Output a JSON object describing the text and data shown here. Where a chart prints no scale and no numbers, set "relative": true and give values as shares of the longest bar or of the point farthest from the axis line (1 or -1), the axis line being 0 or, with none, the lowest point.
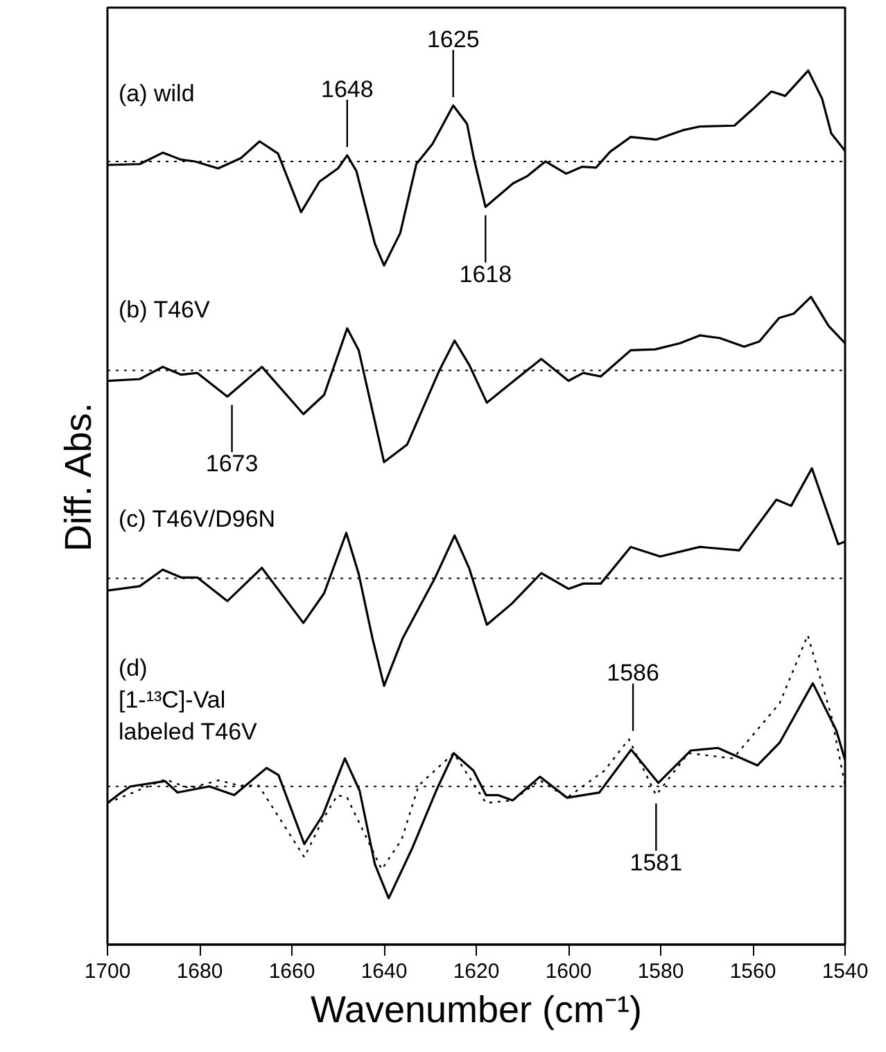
{
  "chart_data": {
    "type": "line",
    "relative": true,
    "xlabel": "Wavenumber (cm⁻¹)",
    "ylabel": "Diff. Abs.",
    "xlim": [
      1700,
      1540
    ],
    "xticks": [
      1700,
      1680,
      1660,
      1640,
      1620,
      1600,
      1580,
      1560,
      1540
    ],
    "grid": false,
    "marker": "none",
    "series": [
      {
        "name": "(a) wild",
        "color": "#000000",
        "line_style": "solid",
        "x": [
          1700,
          1693,
          1688,
          1684,
          1681,
          1676,
          1671,
          1667,
          1663,
          1658,
          1654,
          1650,
          1648,
          1646,
          1642,
          1640,
          1636.5,
          1633,
          1629.5,
          1625,
          1622,
          1620.5,
          1618,
          1612,
          1609,
          1605,
          1600.5,
          1597,
          1594,
          1591,
          1586.5,
          1581,
          1575,
          1571.5,
          1564,
          1560,
          1556,
          1553,
          1548,
          1545,
          1543,
          1540
        ],
        "values": [
          0.892,
          0.893,
          0.906,
          0.898,
          0.896,
          0.888,
          0.9,
          0.919,
          0.905,
          0.838,
          0.873,
          0.888,
          0.903,
          0.885,
          0.802,
          0.777,
          0.814,
          0.893,
          0.916,
          0.96,
          0.939,
          0.899,
          0.844,
          0.871,
          0.879,
          0.896,
          0.882,
          0.89,
          0.889,
          0.907,
          0.924,
          0.921,
          0.932,
          0.936,
          0.937,
          0.956,
          0.976,
          0.971,
          1.0,
          0.968,
          0.928,
          0.908
        ]
      },
      {
        "name": "(b) T46V",
        "color": "#000000",
        "line_style": "solid",
        "x": [
          1700,
          1693,
          1688,
          1684,
          1680.5,
          1674,
          1666.5,
          1657.5,
          1653,
          1648,
          1645.5,
          1640,
          1635,
          1628,
          1624.7,
          1621.5,
          1617.7,
          1612.3,
          1605.9,
          1600,
          1596.8,
          1593,
          1586.5,
          1581.2,
          1575.8,
          1571.5,
          1567.2,
          1561.9,
          1558.6,
          1554.3,
          1551.1,
          1547.4,
          1543.6,
          1540
        ],
        "values": [
          0.645,
          0.647,
          0.661,
          0.652,
          0.654,
          0.627,
          0.661,
          0.607,
          0.629,
          0.705,
          0.68,
          0.552,
          0.572,
          0.657,
          0.691,
          0.663,
          0.62,
          0.643,
          0.67,
          0.645,
          0.654,
          0.65,
          0.68,
          0.681,
          0.688,
          0.697,
          0.694,
          0.684,
          0.69,
          0.717,
          0.722,
          0.741,
          0.708,
          0.688
        ]
      },
      {
        "name": "(c) T46V/D96N",
        "color": "#000000",
        "line_style": "solid",
        "x": [
          1700,
          1693,
          1688,
          1684,
          1680.5,
          1674,
          1666.5,
          1657.5,
          1653,
          1648.2,
          1645.5,
          1642.5,
          1640,
          1636,
          1629,
          1624.7,
          1621.5,
          1617.7,
          1612.3,
          1605.9,
          1600,
          1596.8,
          1593,
          1586.5,
          1580.1,
          1571.5,
          1563,
          1554.9,
          1551.7,
          1547.2,
          1541.5,
          1540
        ],
        "values": [
          0.405,
          0.41,
          0.429,
          0.42,
          0.42,
          0.393,
          0.431,
          0.368,
          0.402,
          0.471,
          0.424,
          0.35,
          0.296,
          0.35,
          0.419,
          0.468,
          0.43,
          0.366,
          0.39,
          0.425,
          0.407,
          0.413,
          0.413,
          0.455,
          0.444,
          0.455,
          0.451,
          0.509,
          0.502,
          0.545,
          0.458,
          0.461
        ]
      },
      {
        "name": "(d)\n[1-¹³C]-Val\n labeled  T46V",
        "color": "#000000",
        "line_style": "solid",
        "x": [
          1700,
          1697,
          1695,
          1687.5,
          1684.8,
          1677.9,
          1672.5,
          1665.5,
          1662.9,
          1657.3,
          1653.3,
          1648.5,
          1645.3,
          1642,
          1639,
          1634,
          1628.7,
          1624.9,
          1620.6,
          1617.9,
          1615.3,
          1612.1,
          1606.2,
          1600.3,
          1593.3,
          1586.4,
          1580.5,
          1573.5,
          1567.6,
          1559,
          1554.2,
          1547,
          1541.9,
          1540
        ],
        "values": [
          0.162,
          0.174,
          0.181,
          0.187,
          0.174,
          0.181,
          0.171,
          0.202,
          0.194,
          0.115,
          0.148,
          0.213,
          0.176,
          0.092,
          0.053,
          0.109,
          0.176,
          0.219,
          0.199,
          0.171,
          0.171,
          0.165,
          0.192,
          0.168,
          0.174,
          0.223,
          0.185,
          0.222,
          0.225,
          0.205,
          0.231,
          0.299,
          0.245,
          0.211
        ]
      },
      {
        "color": "#000000",
        "line_style": "dotted",
        "x": [
          1700,
          1687.5,
          1682.2,
          1675.8,
          1671.5,
          1667.2,
          1657.3,
          1653.3,
          1650.1,
          1648,
          1640.5,
          1636.2,
          1632.5,
          1624.9,
          1617.9,
          1612.1,
          1606.2,
          1600.3,
          1592.2,
          1586.9,
          1581,
          1574,
          1564.3,
          1554.2,
          1548.1,
          1543,
          1540
        ],
        "values": [
          0.162,
          0.189,
          0.179,
          0.188,
          0.182,
          0.182,
          0.1,
          0.143,
          0.171,
          0.168,
          0.086,
          0.12,
          0.182,
          0.219,
          0.162,
          0.165,
          0.188,
          0.168,
          0.199,
          0.235,
          0.171,
          0.219,
          0.213,
          0.276,
          0.354,
          0.262,
          0.182
        ]
      }
    ],
    "ref_lines": [
      {
        "axis": "y",
        "value": 0.896,
        "color": "#000000",
        "line_style": "dotted"
      },
      {
        "axis": "y",
        "value": 0.657,
        "color": "#000000",
        "line_style": "dotted"
      },
      {
        "axis": "y",
        "value": 0.419,
        "color": "#000000",
        "line_style": "dotted"
      },
      {
        "axis": "y",
        "value": 0.181,
        "color": "#000000",
        "line_style": "dotted"
      }
    ],
    "annotations": [
      {
        "text": "1648",
        "x": 1648,
        "y": 0.903
      },
      {
        "text": "1625",
        "x": 1625,
        "y": 0.96
      },
      {
        "text": "1618",
        "x": 1618,
        "y": 0.844
      },
      {
        "text": "1673",
        "x": 1673,
        "y": 0.627
      },
      {
        "text": "1586",
        "x": 1586,
        "y": 0.235
      },
      {
        "text": "1581",
        "x": 1581,
        "y": 0.171
      }
    ]
  }
}
